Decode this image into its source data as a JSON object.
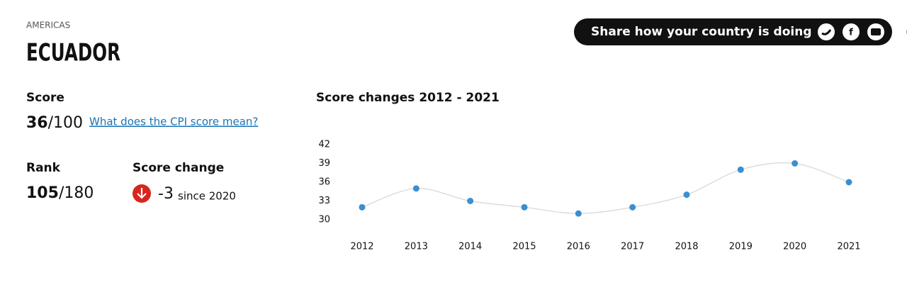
{
  "header": {
    "region": "AMERICAS",
    "country": "ECUADOR"
  },
  "share": {
    "label": "Share how your country is doing"
  },
  "score": {
    "label": "Score",
    "value": 36,
    "out_of": "/100",
    "link": "What does the CPI score mean?"
  },
  "rank": {
    "label": "Rank",
    "value": 105,
    "out_of": "/180"
  },
  "change": {
    "label": "Score change",
    "value": -3,
    "since": "since 2020"
  },
  "chart_data": {
    "type": "line",
    "title": "Score changes 2012 - 2021",
    "categories": [
      "2012",
      "2013",
      "2014",
      "2015",
      "2016",
      "2017",
      "2018",
      "2019",
      "2020",
      "2021"
    ],
    "values": [
      32,
      35,
      33,
      32,
      31,
      32,
      34,
      38,
      39,
      36
    ],
    "color": "#3a8fd1",
    "line_color": "#d6d6d6",
    "ylim": [
      30,
      42
    ],
    "yticks": [
      30,
      33,
      36,
      39,
      42
    ],
    "grid": false
  }
}
